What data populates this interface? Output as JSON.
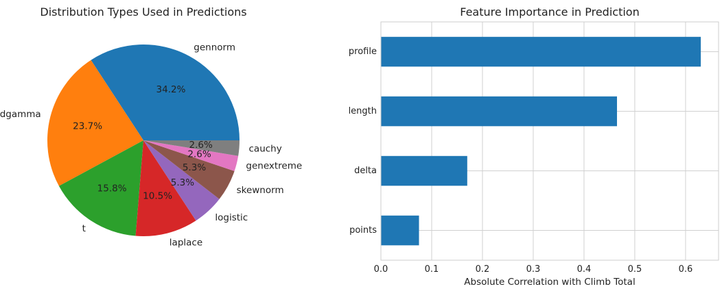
{
  "chart_data": [
    {
      "type": "pie",
      "title": "Distribution Types Used in Predictions",
      "labels": [
        "gennorm",
        "dgamma",
        "t",
        "laplace",
        "logistic",
        "skewnorm",
        "genextreme",
        "cauchy"
      ],
      "values": [
        34.2,
        23.7,
        15.8,
        10.5,
        5.3,
        5.3,
        2.6,
        2.6
      ],
      "value_labels": [
        "34.2%",
        "23.7%",
        "15.8%",
        "10.5%",
        "5.3%",
        "5.3%",
        "2.6%",
        "2.6%"
      ],
      "colors": [
        "#1f77b4",
        "#ff7f0e",
        "#2ca02c",
        "#d62728",
        "#9467bd",
        "#8c564b",
        "#e377c2",
        "#7f7f7f"
      ],
      "start_angle_deg": 0,
      "direction": "counterclockwise"
    },
    {
      "type": "bar",
      "orientation": "horizontal",
      "title": "Feature Importance in Prediction",
      "categories": [
        "profile",
        "length",
        "delta",
        "points"
      ],
      "values": [
        0.63,
        0.465,
        0.17,
        0.075
      ],
      "xlabel": "Absolute Correlation with Climb Total",
      "ylabel": "",
      "xlim": [
        0,
        0.665
      ],
      "xticks": [
        0.0,
        0.1,
        0.2,
        0.3,
        0.4,
        0.5,
        0.6
      ],
      "xtick_labels": [
        "0.0",
        "0.1",
        "0.2",
        "0.3",
        "0.4",
        "0.5",
        "0.6"
      ],
      "grid": true,
      "color": "#1f77b4"
    }
  ]
}
